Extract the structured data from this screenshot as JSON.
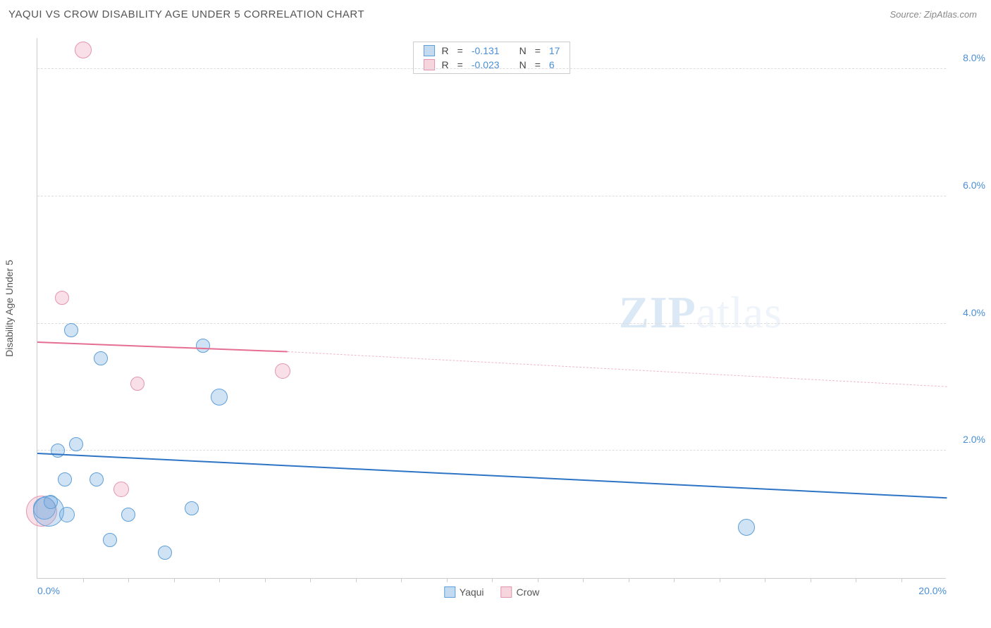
{
  "header": {
    "title": "YAQUI VS CROW DISABILITY AGE UNDER 5 CORRELATION CHART",
    "source_label": "Source: ZipAtlas.com"
  },
  "chart": {
    "type": "scatter",
    "y_axis_title": "Disability Age Under 5",
    "watermark": {
      "zip": "ZIP",
      "atlas": "atlas"
    },
    "xlim": [
      0,
      20
    ],
    "ylim": [
      0,
      8.5
    ],
    "x_ticks": [
      {
        "value": 0,
        "label": "0.0%",
        "align": "left"
      },
      {
        "value": 20,
        "label": "20.0%",
        "align": "right"
      }
    ],
    "x_minor_ticks": [
      1,
      2,
      3,
      4,
      5,
      6,
      7,
      8,
      9,
      10,
      11,
      12,
      13,
      14,
      15,
      16,
      17,
      18,
      19
    ],
    "y_ticks": [
      {
        "value": 2,
        "label": "2.0%"
      },
      {
        "value": 4,
        "label": "4.0%"
      },
      {
        "value": 6,
        "label": "6.0%"
      },
      {
        "value": 8,
        "label": "8.0%"
      }
    ],
    "grid_color": "#dddddd",
    "background_color": "#ffffff",
    "series": {
      "yaqui": {
        "label": "Yaqui",
        "color_fill": "rgba(120,175,225,0.35)",
        "color_stroke": "#5e9fd8",
        "trend_color": "#2d74c4",
        "trend": {
          "x1": 0,
          "y1": 1.95,
          "x2": 20,
          "y2": 1.25
        },
        "points": [
          {
            "x": 0.15,
            "y": 1.1,
            "r": 16
          },
          {
            "x": 0.25,
            "y": 1.05,
            "r": 22
          },
          {
            "x": 0.65,
            "y": 1.0,
            "r": 11
          },
          {
            "x": 0.3,
            "y": 1.2,
            "r": 10
          },
          {
            "x": 0.6,
            "y": 1.55,
            "r": 10
          },
          {
            "x": 1.3,
            "y": 1.55,
            "r": 10
          },
          {
            "x": 2.0,
            "y": 1.0,
            "r": 10
          },
          {
            "x": 1.6,
            "y": 0.6,
            "r": 10
          },
          {
            "x": 2.8,
            "y": 0.4,
            "r": 10
          },
          {
            "x": 0.45,
            "y": 2.0,
            "r": 10
          },
          {
            "x": 0.85,
            "y": 2.1,
            "r": 10
          },
          {
            "x": 0.75,
            "y": 3.9,
            "r": 10
          },
          {
            "x": 1.4,
            "y": 3.45,
            "r": 10
          },
          {
            "x": 3.65,
            "y": 3.65,
            "r": 10
          },
          {
            "x": 4.0,
            "y": 2.85,
            "r": 12
          },
          {
            "x": 3.4,
            "y": 1.1,
            "r": 10
          },
          {
            "x": 15.6,
            "y": 0.8,
            "r": 12
          }
        ]
      },
      "crow": {
        "label": "Crow",
        "color_fill": "rgba(235,150,175,0.30)",
        "color_stroke": "#e395ad",
        "trend_color": "#e56e93",
        "trend": {
          "x1": 0,
          "y1": 3.7,
          "x2": 5.5,
          "y2": 3.55,
          "x2_dash": 20,
          "y2_dash": 3.0
        },
        "points": [
          {
            "x": 0.1,
            "y": 1.05,
            "r": 22
          },
          {
            "x": 1.0,
            "y": 8.3,
            "r": 12
          },
          {
            "x": 0.55,
            "y": 4.4,
            "r": 10
          },
          {
            "x": 2.2,
            "y": 3.05,
            "r": 10
          },
          {
            "x": 5.4,
            "y": 3.25,
            "r": 11
          },
          {
            "x": 1.85,
            "y": 1.4,
            "r": 11
          }
        ]
      }
    },
    "legend_top": [
      {
        "series": "yaqui",
        "r_label": "R",
        "r_value": "-0.131",
        "n_label": "N",
        "n_value": "17"
      },
      {
        "series": "crow",
        "r_label": "R",
        "r_value": "-0.023",
        "n_label": "N",
        "n_value": "6"
      }
    ],
    "legend_bottom": [
      {
        "series": "yaqui",
        "label": "Yaqui"
      },
      {
        "series": "crow",
        "label": "Crow"
      }
    ]
  }
}
